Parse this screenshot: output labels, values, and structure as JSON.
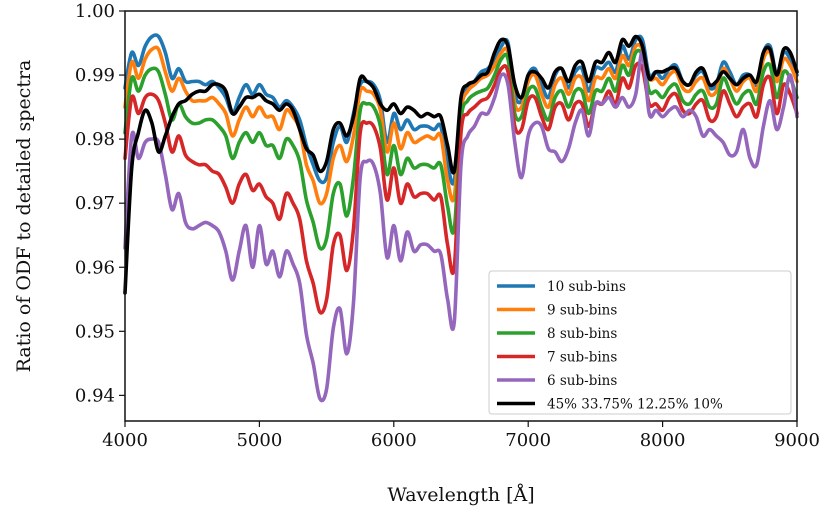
{
  "chart_data": {
    "type": "line",
    "xlabel": "Wavelength [Å]",
    "ylabel": "Ratio of ODF to detailed spectra",
    "xlim": [
      4000,
      9000
    ],
    "ylim": [
      0.936,
      1.0
    ],
    "xticks": [
      4000,
      5000,
      6000,
      7000,
      8000,
      9000
    ],
    "xtick_labels": [
      "4000",
      "5000",
      "6000",
      "7000",
      "8000",
      "9000"
    ],
    "yticks": [
      0.94,
      0.95,
      0.96,
      0.97,
      0.98,
      0.99,
      1.0
    ],
    "ytick_labels": [
      "0.94",
      "0.95",
      "0.96",
      "0.97",
      "0.98",
      "0.99",
      "1.00"
    ],
    "grid": false,
    "legend_position": "bottom-right",
    "x": [
      4000,
      4050,
      4100,
      4150,
      4200,
      4250,
      4300,
      4350,
      4400,
      4450,
      4500,
      4550,
      4600,
      4650,
      4700,
      4750,
      4800,
      4850,
      4900,
      4950,
      5000,
      5050,
      5100,
      5150,
      5200,
      5250,
      5300,
      5350,
      5400,
      5450,
      5500,
      5550,
      5600,
      5650,
      5700,
      5750,
      5800,
      5850,
      5900,
      5950,
      6000,
      6050,
      6100,
      6150,
      6200,
      6250,
      6300,
      6350,
      6400,
      6450,
      6500,
      6550,
      6600,
      6650,
      6700,
      6750,
      6800,
      6850,
      6900,
      6950,
      7000,
      7050,
      7100,
      7150,
      7200,
      7250,
      7300,
      7350,
      7400,
      7450,
      7500,
      7550,
      7600,
      7650,
      7700,
      7750,
      7800,
      7850,
      7900,
      7950,
      8000,
      8050,
      8100,
      8150,
      8200,
      8250,
      8300,
      8350,
      8400,
      8450,
      8500,
      8550,
      8600,
      8650,
      8700,
      8750,
      8800,
      8850,
      8900,
      8950,
      9000
    ],
    "series": [
      {
        "name": "10 sub-bins",
        "color": "#1f77b4",
        "values": [
          0.988,
          0.9935,
          0.9915,
          0.9945,
          0.996,
          0.996,
          0.9935,
          0.9895,
          0.991,
          0.989,
          0.989,
          0.989,
          0.9885,
          0.989,
          0.988,
          0.9865,
          0.984,
          0.9865,
          0.9885,
          0.987,
          0.9885,
          0.987,
          0.9865,
          0.985,
          0.986,
          0.985,
          0.983,
          0.979,
          0.976,
          0.9735,
          0.974,
          0.9795,
          0.982,
          0.9795,
          0.984,
          0.9885,
          0.989,
          0.9885,
          0.986,
          0.9795,
          0.984,
          0.9815,
          0.983,
          0.9815,
          0.982,
          0.982,
          0.9815,
          0.982,
          0.976,
          0.9735,
          0.9855,
          0.988,
          0.989,
          0.9905,
          0.991,
          0.9925,
          0.9945,
          0.995,
          0.987,
          0.986,
          0.99,
          0.991,
          0.9885,
          0.9865,
          0.99,
          0.991,
          0.988,
          0.9905,
          0.991,
          0.9875,
          0.991,
          0.991,
          0.992,
          0.9905,
          0.9945,
          0.9925,
          0.9955,
          0.9955,
          0.99,
          0.9905,
          0.9895,
          0.991,
          0.9915,
          0.989,
          0.9885,
          0.99,
          0.9905,
          0.988,
          0.9885,
          0.992,
          0.9905,
          0.9885,
          0.99,
          0.99,
          0.9885,
          0.9935,
          0.9945,
          0.99,
          0.9935,
          0.9925,
          0.99
        ]
      },
      {
        "name": "9 sub-bins",
        "color": "#ff7f0e",
        "values": [
          0.985,
          0.992,
          0.9895,
          0.9925,
          0.994,
          0.994,
          0.9905,
          0.9875,
          0.9895,
          0.9875,
          0.986,
          0.986,
          0.986,
          0.9865,
          0.9855,
          0.984,
          0.9805,
          0.983,
          0.985,
          0.9835,
          0.985,
          0.9835,
          0.9835,
          0.9815,
          0.9845,
          0.9835,
          0.9815,
          0.976,
          0.9735,
          0.97,
          0.9715,
          0.977,
          0.979,
          0.9765,
          0.9805,
          0.9875,
          0.9875,
          0.987,
          0.9845,
          0.978,
          0.9825,
          0.9785,
          0.981,
          0.9795,
          0.98,
          0.9805,
          0.98,
          0.9805,
          0.9735,
          0.971,
          0.9845,
          0.9875,
          0.9885,
          0.9895,
          0.99,
          0.9915,
          0.9935,
          0.9935,
          0.9855,
          0.985,
          0.989,
          0.99,
          0.987,
          0.985,
          0.9885,
          0.9895,
          0.987,
          0.9895,
          0.9895,
          0.986,
          0.9895,
          0.9895,
          0.991,
          0.9895,
          0.993,
          0.9915,
          0.9945,
          0.994,
          0.9895,
          0.9895,
          0.9885,
          0.99,
          0.9905,
          0.988,
          0.9875,
          0.989,
          0.9895,
          0.987,
          0.9875,
          0.991,
          0.9895,
          0.9875,
          0.989,
          0.9895,
          0.9875,
          0.9925,
          0.9935,
          0.989,
          0.9925,
          0.9915,
          0.989
        ]
      },
      {
        "name": "8 sub-bins",
        "color": "#2ca02c",
        "values": [
          0.981,
          0.9895,
          0.9875,
          0.99,
          0.991,
          0.9905,
          0.987,
          0.983,
          0.9855,
          0.9835,
          0.9825,
          0.9825,
          0.983,
          0.983,
          0.982,
          0.9805,
          0.977,
          0.9795,
          0.981,
          0.9795,
          0.981,
          0.979,
          0.979,
          0.977,
          0.98,
          0.979,
          0.9765,
          0.9705,
          0.967,
          0.963,
          0.9645,
          0.9715,
          0.973,
          0.968,
          0.974,
          0.9845,
          0.9855,
          0.985,
          0.982,
          0.9745,
          0.979,
          0.9745,
          0.977,
          0.9755,
          0.976,
          0.976,
          0.9755,
          0.976,
          0.9695,
          0.966,
          0.983,
          0.986,
          0.987,
          0.9875,
          0.988,
          0.99,
          0.9925,
          0.9925,
          0.984,
          0.9835,
          0.9875,
          0.988,
          0.985,
          0.983,
          0.9865,
          0.9875,
          0.985,
          0.9875,
          0.9875,
          0.984,
          0.9875,
          0.9875,
          0.9895,
          0.9875,
          0.9915,
          0.99,
          0.9935,
          0.993,
          0.9875,
          0.9875,
          0.9865,
          0.988,
          0.9885,
          0.986,
          0.9855,
          0.987,
          0.9875,
          0.985,
          0.9855,
          0.9895,
          0.9875,
          0.9855,
          0.987,
          0.9875,
          0.9855,
          0.9905,
          0.9915,
          0.9865,
          0.9905,
          0.9895,
          0.9865
        ]
      },
      {
        "name": "7 sub-bins",
        "color": "#d62728",
        "values": [
          0.977,
          0.9865,
          0.984,
          0.9865,
          0.987,
          0.986,
          0.9825,
          0.978,
          0.9805,
          0.9775,
          0.9765,
          0.976,
          0.976,
          0.975,
          0.9745,
          0.9725,
          0.97,
          0.973,
          0.9745,
          0.972,
          0.973,
          0.971,
          0.97,
          0.9675,
          0.9715,
          0.97,
          0.9675,
          0.961,
          0.9575,
          0.953,
          0.955,
          0.9635,
          0.965,
          0.9595,
          0.966,
          0.981,
          0.9825,
          0.982,
          0.9785,
          0.9705,
          0.9755,
          0.97,
          0.973,
          0.971,
          0.9715,
          0.9715,
          0.9705,
          0.971,
          0.9635,
          0.96,
          0.981,
          0.984,
          0.985,
          0.986,
          0.9865,
          0.9885,
          0.991,
          0.9905,
          0.982,
          0.9815,
          0.986,
          0.9865,
          0.9835,
          0.9815,
          0.985,
          0.9855,
          0.983,
          0.9855,
          0.9855,
          0.982,
          0.9855,
          0.9855,
          0.9875,
          0.9855,
          0.9895,
          0.988,
          0.9915,
          0.991,
          0.9855,
          0.9855,
          0.9845,
          0.9865,
          0.987,
          0.9845,
          0.984,
          0.9855,
          0.986,
          0.983,
          0.9835,
          0.9875,
          0.9855,
          0.9835,
          0.985,
          0.9855,
          0.9835,
          0.9885,
          0.9895,
          0.984,
          0.9885,
          0.987,
          0.984
        ]
      },
      {
        "name": "6 sub-bins",
        "color": "#9467bd",
        "values": [
          0.963,
          0.9805,
          0.977,
          0.9795,
          0.98,
          0.9795,
          0.9745,
          0.969,
          0.9715,
          0.967,
          0.966,
          0.9665,
          0.967,
          0.9665,
          0.9655,
          0.9625,
          0.958,
          0.9625,
          0.9665,
          0.96,
          0.9665,
          0.9605,
          0.9625,
          0.9585,
          0.9625,
          0.9605,
          0.9575,
          0.9495,
          0.945,
          0.9395,
          0.941,
          0.9505,
          0.9535,
          0.9465,
          0.9545,
          0.974,
          0.9765,
          0.976,
          0.9715,
          0.9615,
          0.9665,
          0.961,
          0.9655,
          0.9625,
          0.9635,
          0.9635,
          0.9625,
          0.962,
          0.955,
          0.9515,
          0.976,
          0.9805,
          0.982,
          0.984,
          0.984,
          0.9865,
          0.99,
          0.9885,
          0.9795,
          0.974,
          0.9805,
          0.9825,
          0.982,
          0.9785,
          0.978,
          0.9765,
          0.9785,
          0.9825,
          0.9845,
          0.9805,
          0.9855,
          0.9855,
          0.9865,
          0.985,
          0.9865,
          0.985,
          0.987,
          0.9935,
          0.984,
          0.9845,
          0.9835,
          0.9845,
          0.985,
          0.9835,
          0.9845,
          0.9835,
          0.9805,
          0.9815,
          0.9805,
          0.9795,
          0.9775,
          0.978,
          0.9815,
          0.977,
          0.976,
          0.982,
          0.986,
          0.9815,
          0.985,
          0.99,
          0.9835
        ]
      },
      {
        "name": "45% 33.75% 12.25% 10%",
        "color": "#000000",
        "values": [
          0.956,
          0.9755,
          0.981,
          0.9845,
          0.9825,
          0.978,
          0.9805,
          0.9835,
          0.9855,
          0.986,
          0.987,
          0.9875,
          0.9875,
          0.9885,
          0.9885,
          0.9875,
          0.984,
          0.985,
          0.9865,
          0.9865,
          0.987,
          0.986,
          0.9855,
          0.9845,
          0.9855,
          0.9845,
          0.9815,
          0.9785,
          0.9775,
          0.975,
          0.9765,
          0.9815,
          0.9825,
          0.9805,
          0.9835,
          0.9895,
          0.989,
          0.988,
          0.9855,
          0.9845,
          0.9855,
          0.984,
          0.985,
          0.9845,
          0.9835,
          0.984,
          0.9835,
          0.9835,
          0.979,
          0.975,
          0.9865,
          0.9885,
          0.989,
          0.99,
          0.9905,
          0.9935,
          0.9955,
          0.9945,
          0.9885,
          0.9865,
          0.99,
          0.9905,
          0.9895,
          0.988,
          0.9905,
          0.991,
          0.989,
          0.9915,
          0.992,
          0.989,
          0.992,
          0.992,
          0.9935,
          0.992,
          0.9955,
          0.9945,
          0.996,
          0.9945,
          0.9895,
          0.9905,
          0.9905,
          0.991,
          0.991,
          0.989,
          0.9885,
          0.9905,
          0.991,
          0.9885,
          0.989,
          0.9905,
          0.9895,
          0.9885,
          0.9895,
          0.99,
          0.989,
          0.9935,
          0.994,
          0.99,
          0.994,
          0.9935,
          0.9905
        ]
      }
    ]
  }
}
